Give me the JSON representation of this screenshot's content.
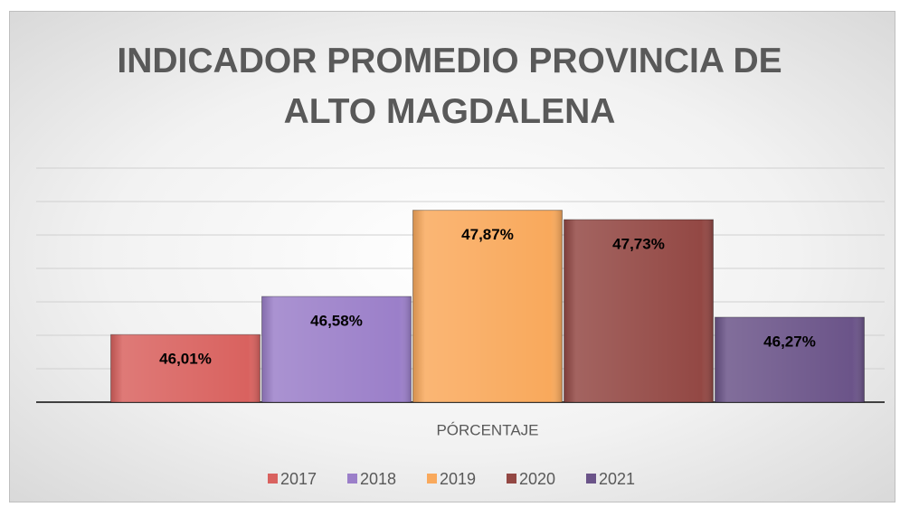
{
  "chart_data": {
    "type": "bar",
    "title": "INDICADOR PROMEDIO PROVINCIA DE ALTO MAGDALENA",
    "categories": [
      "PÓRCENTAJE"
    ],
    "series": [
      {
        "name": "2017",
        "color": "#d9625f",
        "values": [
          46.01
        ],
        "value_labels": [
          "46,01%"
        ]
      },
      {
        "name": "2018",
        "color": "#9b7fc9",
        "values": [
          46.58
        ],
        "value_labels": [
          "46,58%"
        ]
      },
      {
        "name": "2019",
        "color": "#f9a95c",
        "values": [
          47.87
        ],
        "value_labels": [
          "47,87%"
        ]
      },
      {
        "name": "2020",
        "color": "#934844",
        "values": [
          47.73
        ],
        "value_labels": [
          "47,73%"
        ]
      },
      {
        "name": "2021",
        "color": "#6b5489",
        "values": [
          46.27
        ],
        "value_labels": [
          "46,27%"
        ]
      }
    ],
    "ylim": [
      45,
      48.5
    ],
    "yticks": [
      45,
      45.5,
      46,
      46.5,
      47,
      47.5,
      48,
      48.5
    ],
    "grid": true,
    "legend": "bottom"
  }
}
